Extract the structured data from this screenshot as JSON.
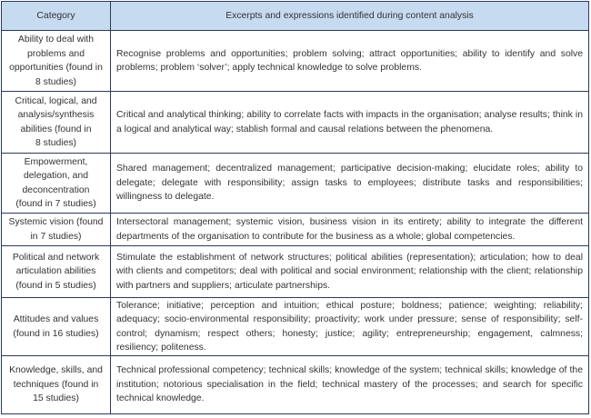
{
  "table": {
    "headers": [
      "Category",
      "Excerpts and expressions identified during content analysis"
    ],
    "rows": [
      {
        "category": "Ability to deal with\nproblems and\nopportunities (found in\n8 studies)",
        "excerpts": "Recognise problems and opportunities; problem solving; attract opportunities; ability to identify and solve problems; problem ‘solver’; apply technical knowledge to solve problems."
      },
      {
        "category": "Critical, logical, and\nanalysis/synthesis\nabilities (found in\n8 studies)",
        "excerpts": "Critical and analytical thinking; ability to correlate facts with impacts in the organisation; analyse results; think in a logical and analytical way; stablish formal and causal relations between the phenomena."
      },
      {
        "category": "Empowerment,\ndelegation, and\ndeconcentration\n(found in 7 studies)",
        "excerpts": "Shared management; decentralized management; participative decision-making; elucidate roles; ability to delegate; delegate with responsibility; assign tasks to employees; distribute tasks and responsibilities; willingness to delegate."
      },
      {
        "category": "Systemic vision (found\nin 7 studies)",
        "excerpts": "Intersectoral management; systemic vision, business vision in its entirety; ability to integrate the different departments of the organisation to contribute for the business as a whole; global competencies."
      },
      {
        "category": "Political and network\narticulation abilities\n(found in 5 studies)",
        "excerpts": "Stimulate the establishment of network structures; political abilities (representation); articulation; how to deal with clients and competitors; deal with political and social environment; relationship with the client; relationship with partners and suppliers; articulate partnerships."
      },
      {
        "category": "Attitudes and values\n(found in 16 studies)",
        "excerpts": "Tolerance; initiative; perception and intuition; ethical posture; boldness; patience; weighting; reliability; adequacy; socio-environmental responsibility; proactivity; work under pressure; sense of responsibility; self-control; dynamism; respect others; honesty; justice; agility; entrepreneurship; engagement, calmness; resiliency; politeness."
      },
      {
        "category": "Knowledge, skills, and\ntechniques (found in\n15 studies)",
        "excerpts": "Technical professional competency; technical skills; knowledge of the system; technical skills; knowledge of the institution; notorious specialisation in the field; technical mastery of the processes; and search for specific technical knowledge."
      }
    ]
  }
}
